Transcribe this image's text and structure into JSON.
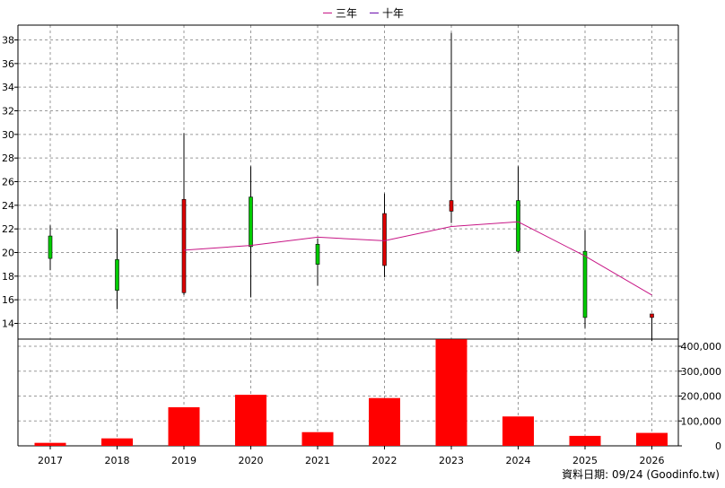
{
  "chart_data": {
    "type": "candlestick",
    "legend": [
      {
        "label": "三年",
        "color": "#c71585"
      },
      {
        "label": "十年",
        "color": "#6a0dad"
      }
    ],
    "categories": [
      "2017",
      "2018",
      "2019",
      "2020",
      "2021",
      "2022",
      "2023",
      "2024",
      "2025",
      "2026"
    ],
    "price_axis": {
      "min": 13,
      "max": 39,
      "ticks": [
        14,
        16,
        18,
        20,
        22,
        24,
        26,
        28,
        30,
        32,
        34,
        36,
        38
      ]
    },
    "candles": [
      {
        "year": "2017",
        "open": 19.5,
        "close": 21.4,
        "high": 22.3,
        "low": 18.5
      },
      {
        "year": "2018",
        "open": 16.8,
        "close": 19.4,
        "high": 22.0,
        "low": 15.2
      },
      {
        "year": "2019",
        "open": 24.5,
        "close": 16.6,
        "high": 30.1,
        "low": 16.4
      },
      {
        "year": "2020",
        "open": 20.5,
        "close": 24.7,
        "high": 27.3,
        "low": 16.2
      },
      {
        "year": "2021",
        "open": 19.0,
        "close": 20.7,
        "high": 21.2,
        "low": 17.2
      },
      {
        "year": "2022",
        "open": 23.3,
        "close": 18.9,
        "high": 25.0,
        "low": 17.9
      },
      {
        "year": "2023",
        "open": 24.4,
        "close": 23.5,
        "high": 38.6,
        "low": 22.5
      },
      {
        "year": "2024",
        "open": 20.1,
        "close": 24.4,
        "high": 27.3,
        "low": 20.0
      },
      {
        "year": "2025",
        "open": 14.5,
        "close": 20.1,
        "high": 21.9,
        "low": 13.6
      },
      {
        "year": "2026",
        "open": 14.8,
        "close": 14.5,
        "high": 14.8,
        "low": 12.5
      }
    ],
    "moving_average": {
      "name": "三年",
      "values": [
        null,
        null,
        20.2,
        20.6,
        21.3,
        21.0,
        22.2,
        22.6,
        19.7,
        16.4
      ]
    },
    "volume_axis": {
      "min": 0,
      "max": 420000,
      "ticks": [
        0,
        100000,
        200000,
        300000,
        400000
      ],
      "tick_labels": [
        "0",
        "100,000",
        "200,000",
        "300,000",
        "400,000"
      ]
    },
    "volume": [
      12000,
      30000,
      155000,
      205000,
      55000,
      192000,
      428000,
      118000,
      40000,
      52000
    ]
  },
  "footer": {
    "text": "資料日期: 09/24 (Goodinfo.tw)"
  }
}
